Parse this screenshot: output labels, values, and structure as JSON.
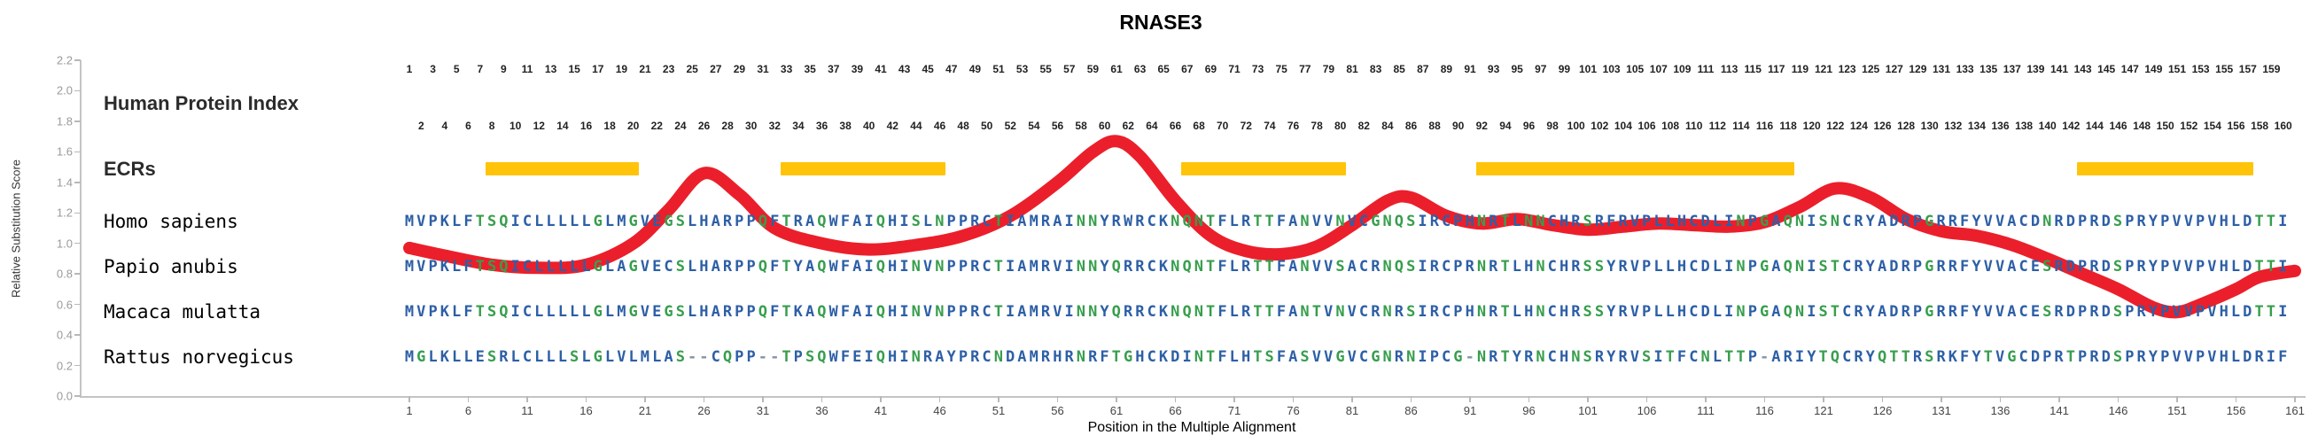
{
  "title": "RNASE3",
  "axes": {
    "y_label": "Relative Substitution Score",
    "x_label": "Position in the Multiple Alignment",
    "y_ticks": [
      "2.2",
      "2.0",
      "1.8",
      "1.6",
      "1.4",
      "1.2",
      "1.0",
      "0.8",
      "0.6",
      "0.4",
      "0.2",
      "0.0"
    ],
    "x_tick_start": 1,
    "x_tick_step": 5,
    "x_tick_end": 161
  },
  "rows": {
    "index_label": "Human Protein Index",
    "ecr_label": "ECRs",
    "index_max": 160
  },
  "alignment": {
    "green_residues": "GSTNQ",
    "residue_colors": {
      "default": "#2d5fa6",
      "polar": "#379e4d",
      "gap": "#8593a6"
    },
    "species": [
      {
        "name": "Homo sapiens",
        "sequence": "MVPKLFTSQICLLLLLGLMGVEGSLHARPPQFTRAQWFAIQHISLNPPRCTIAMRAINNYRWRCKNQNTFLRTTFANVVNVCGNQSIRCPHNRTLNNCHRSRFRVPLLHCDLINPGAQNISNCRYADRPGRRFYVVACDNRDPRDSPRYPVVPVHLDTTI"
      },
      {
        "name": "Papio anubis",
        "sequence": "MVPKLFTSQICLLLLLGLAGVECSLHARPPQFTYAQWFAIQHINVNPPRCTIAMRVINNYQRRCKNQNTFLRTTFANVVSACRNQSIRCPRNRTLHNCHRSSYRVPLLHCDLINPGAQNISTCRYADRPGRRFYVVACESRDPRDSPRYPVVPVHLDTTI"
      },
      {
        "name": "Macaca mulatta",
        "sequence": "MVPKLFTSQICLLLLLGLMGVEGSLHARPPQFTKAQWFAIQHINVNPPRCTIAMRVINNYQRRCKNQNTFLRTTFANTVNVCRNRSIRCPHNRTLHNCHRSSYRVPLLHCDLINPGAQNISTCRYADRPGRRFYVVACESRDPRDSPRYPVVPVHLDTTI"
      },
      {
        "name": "Rattus norvegicus",
        "sequence": "MGLKLLESRLCLLLSLGLVLMLAS--CQPP--TPSQWFEIQHINRAYPRCNDAMRHRNRFTGHCKDINTFLHTSFASVVGVCGNRNIPCG-NRTYRNCHNSRYRVSITFCNLTTP-ARIYTQCRYQTTRSRKFYTVGCDPRTPRDSPRYPVVPVHLDRIF"
      }
    ]
  },
  "chart_data": {
    "type": "line",
    "title": "RNASE3",
    "xlabel": "Position in the Multiple Alignment",
    "ylabel": "Relative Substitution Score",
    "xlim": [
      1,
      161
    ],
    "ylim": [
      0,
      2.2
    ],
    "grid": false,
    "ecr_color": "#ffc40a",
    "ecr_regions": [
      [
        8,
        20
      ],
      [
        33,
        46
      ],
      [
        67,
        80
      ],
      [
        92,
        118
      ],
      [
        143,
        157
      ]
    ],
    "series": [
      {
        "name": "relative substitution score",
        "color": "#ea1320",
        "points": [
          [
            1,
            0.97
          ],
          [
            4,
            0.92
          ],
          [
            8,
            0.86
          ],
          [
            12,
            0.84
          ],
          [
            16,
            0.86
          ],
          [
            20,
            1.0
          ],
          [
            23,
            1.22
          ],
          [
            26,
            1.46
          ],
          [
            29,
            1.32
          ],
          [
            32,
            1.1
          ],
          [
            36,
            1.0
          ],
          [
            40,
            0.96
          ],
          [
            44,
            0.99
          ],
          [
            48,
            1.05
          ],
          [
            52,
            1.18
          ],
          [
            56,
            1.4
          ],
          [
            59,
            1.6
          ],
          [
            61,
            1.67
          ],
          [
            63,
            1.57
          ],
          [
            66,
            1.28
          ],
          [
            69,
            1.05
          ],
          [
            72,
            0.95
          ],
          [
            75,
            0.93
          ],
          [
            78,
            0.98
          ],
          [
            81,
            1.12
          ],
          [
            84,
            1.28
          ],
          [
            86,
            1.3
          ],
          [
            89,
            1.18
          ],
          [
            92,
            1.13
          ],
          [
            95,
            1.16
          ],
          [
            98,
            1.12
          ],
          [
            101,
            1.09
          ],
          [
            104,
            1.11
          ],
          [
            107,
            1.13
          ],
          [
            110,
            1.12
          ],
          [
            113,
            1.11
          ],
          [
            116,
            1.14
          ],
          [
            119,
            1.24
          ],
          [
            122,
            1.36
          ],
          [
            125,
            1.3
          ],
          [
            128,
            1.16
          ],
          [
            131,
            1.08
          ],
          [
            134,
            1.05
          ],
          [
            137,
            0.99
          ],
          [
            140,
            0.9
          ],
          [
            143,
            0.8
          ],
          [
            146,
            0.7
          ],
          [
            149,
            0.58
          ],
          [
            151,
            0.55
          ],
          [
            153,
            0.6
          ],
          [
            156,
            0.7
          ],
          [
            158,
            0.78
          ],
          [
            161,
            0.82
          ]
        ]
      }
    ]
  }
}
